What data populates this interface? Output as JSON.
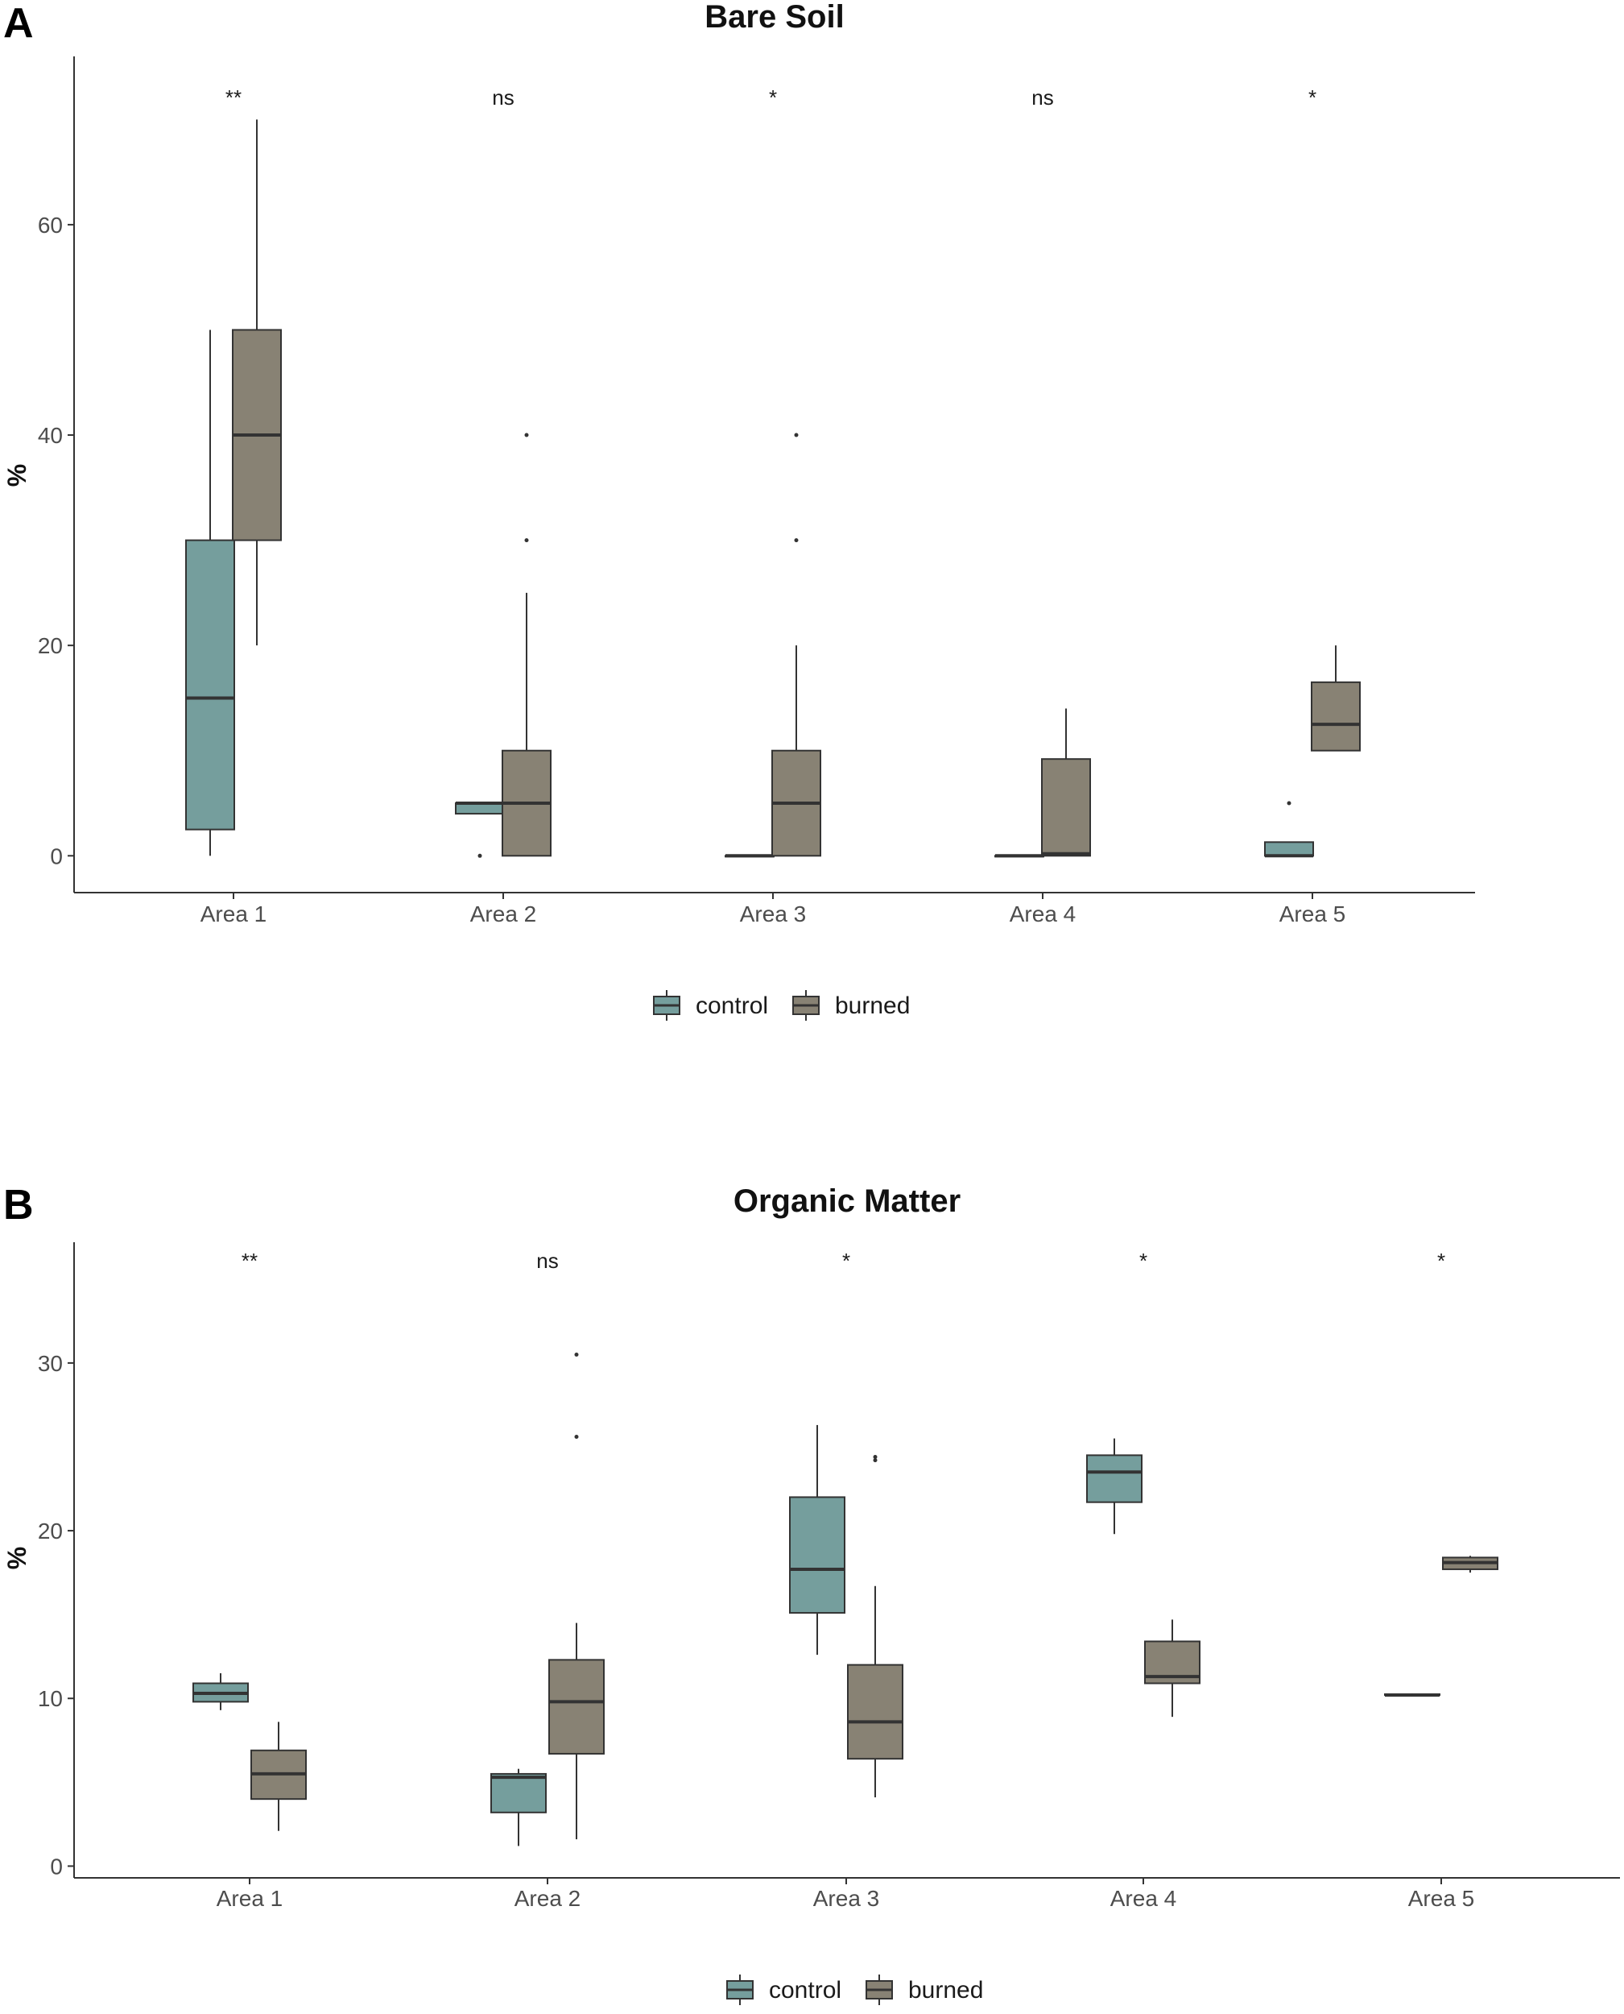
{
  "figure": {
    "colors": {
      "control": "#759e9d",
      "burned": "#888274",
      "line": "#333333"
    },
    "legend": {
      "entries": [
        {
          "label": "control"
        },
        {
          "label": "burned"
        }
      ],
      "placement": "bottom"
    }
  },
  "chart_data": [
    {
      "panel_label": "A",
      "type": "boxplot",
      "title": "Bare Soil",
      "xlabel": "",
      "ylabel": "%",
      "ylim": [
        -3.5,
        76
      ],
      "yticks": [
        0,
        20,
        40,
        60
      ],
      "categories": [
        "Area 1",
        "Area 2",
        "Area 3",
        "Area 4",
        "Area 5"
      ],
      "significance": [
        "**",
        "ns",
        "*",
        "ns",
        "*"
      ],
      "series": [
        {
          "name": "control",
          "boxes": [
            {
              "min": 0,
              "q1": 2.5,
              "median": 15,
              "q3": 30,
              "max": 50,
              "outliers": []
            },
            {
              "min": 4,
              "q1": 4,
              "median": 5,
              "q3": 5,
              "max": 5,
              "outliers": [
                0
              ]
            },
            {
              "min": 0,
              "q1": 0,
              "median": 0,
              "q3": 0,
              "max": 0,
              "outliers": []
            },
            {
              "min": 0,
              "q1": 0,
              "median": 0,
              "q3": 0,
              "max": 0,
              "outliers": []
            },
            {
              "min": 0,
              "q1": 0,
              "median": 0,
              "q3": 1.3,
              "max": 1.3,
              "outliers": [
                5
              ]
            }
          ]
        },
        {
          "name": "burned",
          "boxes": [
            {
              "min": 20,
              "q1": 30,
              "median": 40,
              "q3": 50,
              "max": 70,
              "outliers": []
            },
            {
              "min": 0,
              "q1": 0,
              "median": 5,
              "q3": 10,
              "max": 25,
              "outliers": [
                30,
                40
              ]
            },
            {
              "min": 0,
              "q1": 0,
              "median": 5,
              "q3": 10,
              "max": 20,
              "outliers": [
                30,
                40
              ]
            },
            {
              "min": 0,
              "q1": 0,
              "median": 0.2,
              "q3": 9.2,
              "max": 14,
              "outliers": []
            },
            {
              "min": 10,
              "q1": 10,
              "median": 12.5,
              "q3": 16.5,
              "max": 20,
              "outliers": []
            }
          ]
        }
      ]
    },
    {
      "panel_label": "B",
      "type": "boxplot",
      "title": "Organic Matter",
      "xlabel": "",
      "ylabel": "%",
      "ylim": [
        -0.7,
        37.2
      ],
      "yticks": [
        0,
        10,
        20,
        30
      ],
      "categories": [
        "Area 1",
        "Area 2",
        "Area 3",
        "Area 4",
        "Area 5"
      ],
      "significance": [
        "**",
        "ns",
        "*",
        "*",
        "*"
      ],
      "series": [
        {
          "name": "control",
          "boxes": [
            {
              "min": 9.3,
              "q1": 9.8,
              "median": 10.3,
              "q3": 10.9,
              "max": 11.5,
              "outliers": []
            },
            {
              "min": 1.2,
              "q1": 3.2,
              "median": 5.3,
              "q3": 5.5,
              "max": 5.8,
              "outliers": []
            },
            {
              "min": 12.6,
              "q1": 15.1,
              "median": 17.7,
              "q3": 22.0,
              "max": 26.3,
              "outliers": []
            },
            {
              "min": 19.8,
              "q1": 21.7,
              "median": 23.5,
              "q3": 24.5,
              "max": 25.5,
              "outliers": []
            },
            {
              "min": 10.2,
              "q1": 10.2,
              "median": 10.2,
              "q3": 10.25,
              "max": 10.3,
              "outliers": []
            }
          ]
        },
        {
          "name": "burned",
          "boxes": [
            {
              "min": 2.1,
              "q1": 4.0,
              "median": 5.5,
              "q3": 6.9,
              "max": 8.6,
              "outliers": []
            },
            {
              "min": 1.6,
              "q1": 6.7,
              "median": 9.8,
              "q3": 12.3,
              "max": 14.5,
              "outliers": [
                25.6,
                30.5
              ]
            },
            {
              "min": 4.1,
              "q1": 6.4,
              "median": 8.6,
              "q3": 12.0,
              "max": 16.7,
              "outliers": [
                24.2,
                24.4
              ]
            },
            {
              "min": 8.9,
              "q1": 10.9,
              "median": 11.3,
              "q3": 13.4,
              "max": 14.7,
              "outliers": []
            },
            {
              "min": 17.5,
              "q1": 17.7,
              "median": 18.1,
              "q3": 18.4,
              "max": 18.5,
              "outliers": []
            }
          ]
        }
      ]
    }
  ]
}
